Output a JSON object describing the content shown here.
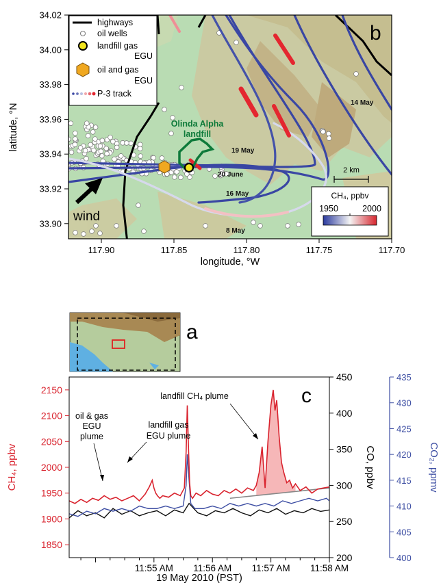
{
  "panel_b": {
    "letter": "b",
    "xlabel": "longitude, °W",
    "ylabel": "latitude, °N",
    "xticks": [
      "117.90",
      "117.85",
      "117.80",
      "117.75",
      "117.70"
    ],
    "yticks": [
      "34.02",
      "34.00",
      "33.98",
      "33.96",
      "33.94",
      "33.92",
      "33.90"
    ],
    "legend": {
      "highways": "highways",
      "oil_wells": "oil wells",
      "landfill_line1": "landfill gas",
      "landfill_line2": "EGU",
      "oilgas_line1": "oil and gas",
      "oilgas_line2": "EGU",
      "track": "P-3 track"
    },
    "landfill_name_line1": "Olinda Alpha",
    "landfill_name_line2": "landfill",
    "flight_labels": [
      "14 May",
      "19 May",
      "20 June",
      "16 May",
      "8 May"
    ],
    "wind_label": "wind",
    "scale_label": "2 km",
    "colorbar": {
      "title": "CH₄, ppbv",
      "min_label": "1950",
      "max_label": "2000"
    },
    "colors": {
      "land": "#b7dcb5",
      "track_low": "#3946a3",
      "track_high": "#e4262f",
      "landfill_outline": "#0e7a3a",
      "highway": "#000000"
    }
  },
  "panel_a": {
    "letter": "a",
    "colors": {
      "ocean": "#5fb0e2",
      "box": "#e02020"
    }
  },
  "chart_data": {
    "type": "line",
    "letter": "c",
    "xlabel": "19 May 2010 (PST)",
    "x_ticks": [
      "11:55 AM",
      "11:56 AM",
      "11:57 AM",
      "11:58 AM"
    ],
    "x_range_minutes": [
      -1.45,
      3.0
    ],
    "series": [
      {
        "name": "CH₄, ppbv",
        "axis": "left",
        "color": "#d9232e",
        "ylim": [
          1825,
          2175
        ],
        "ticks": [
          "1850",
          "1900",
          "1950",
          "2000",
          "2050",
          "2100",
          "2150"
        ],
        "x": [
          -1.45,
          -1.35,
          -1.25,
          -1.15,
          -1.05,
          -0.95,
          -0.85,
          -0.75,
          -0.65,
          -0.55,
          -0.45,
          -0.35,
          -0.25,
          -0.15,
          -0.08,
          -0.03,
          0.0,
          0.03,
          0.06,
          0.1,
          0.15,
          0.25,
          0.35,
          0.45,
          0.52,
          0.55,
          0.57,
          0.59,
          0.61,
          0.63,
          0.66,
          0.72,
          0.8,
          0.9,
          1.0,
          1.1,
          1.2,
          1.3,
          1.4,
          1.5,
          1.6,
          1.7,
          1.75,
          1.8,
          1.85,
          1.9,
          1.95,
          2.0,
          2.04,
          2.07,
          2.1,
          2.14,
          2.18,
          2.22,
          2.27,
          2.32,
          2.37,
          2.42,
          2.5,
          2.6,
          2.7,
          2.8,
          2.9,
          3.0
        ],
        "values": [
          1935,
          1930,
          1938,
          1932,
          1940,
          1936,
          1945,
          1938,
          1942,
          1935,
          1940,
          1945,
          1935,
          1948,
          1962,
          1975,
          1960,
          1950,
          1945,
          1940,
          1945,
          1942,
          1950,
          1945,
          1960,
          2030,
          2120,
          2040,
          1970,
          1945,
          1940,
          1950,
          1945,
          1955,
          1948,
          1945,
          1955,
          1950,
          1958,
          1950,
          1960,
          1955,
          1965,
          1990,
          2040,
          1960,
          2050,
          2120,
          2150,
          2110,
          2130,
          2060,
          2010,
          1990,
          1970,
          1975,
          1960,
          1968,
          1955,
          1962,
          1950,
          1958,
          1960,
          1962
        ]
      },
      {
        "name": "CO, ppbv",
        "axis": "right1",
        "color": "#111111",
        "ylim": [
          200,
          450
        ],
        "ticks": [
          "200",
          "250",
          "300",
          "350",
          "400",
          "450"
        ],
        "x": [
          -1.45,
          -1.3,
          -1.15,
          -1.0,
          -0.85,
          -0.7,
          -0.55,
          -0.4,
          -0.25,
          -0.1,
          0.05,
          0.2,
          0.35,
          0.5,
          0.6,
          0.75,
          0.9,
          1.05,
          1.2,
          1.35,
          1.5,
          1.65,
          1.8,
          1.95,
          2.1,
          2.25,
          2.4,
          2.55,
          2.7,
          2.85,
          3.0
        ],
        "values": [
          255,
          265,
          258,
          262,
          255,
          268,
          260,
          265,
          258,
          262,
          265,
          258,
          266,
          262,
          275,
          262,
          258,
          265,
          262,
          268,
          262,
          258,
          266,
          262,
          268,
          260,
          265,
          262,
          268,
          264,
          266
        ]
      },
      {
        "name": "CO₂, ppmv",
        "axis": "right2",
        "color": "#3d4ea3",
        "ylim": [
          400,
          435
        ],
        "ticks": [
          "400",
          "405",
          "410",
          "415",
          "420",
          "425",
          "430",
          "435"
        ],
        "x": [
          -1.45,
          -1.3,
          -1.15,
          -1.0,
          -0.85,
          -0.7,
          -0.55,
          -0.4,
          -0.25,
          -0.1,
          0.05,
          0.2,
          0.35,
          0.5,
          0.55,
          0.57,
          0.6,
          0.63,
          0.7,
          0.85,
          1.0,
          1.15,
          1.3,
          1.45,
          1.6,
          1.75,
          1.9,
          2.05,
          2.2,
          2.35,
          2.5,
          2.65,
          2.8,
          2.95,
          3.0
        ],
        "values": [
          408.5,
          408,
          409,
          408.5,
          409.5,
          409,
          409.5,
          409,
          410,
          409.5,
          409.5,
          410,
          409.5,
          410,
          414,
          420,
          415,
          410.5,
          409.5,
          409.5,
          410,
          409.5,
          410.5,
          410,
          410.5,
          410,
          410.5,
          410,
          411,
          410.5,
          411,
          411.5,
          411,
          411.5,
          411
        ]
      }
    ],
    "annotations": [
      "oil & gas\nEGU\nplume",
      "landfill gas\nEGU plume",
      "landfill CH₄ plume"
    ],
    "annotation_lines": {
      "oil": [
        "oil & gas",
        "EGU",
        "plume"
      ],
      "egu": [
        "landfill gas",
        "EGU plume"
      ],
      "landfill": "landfill CH₄ plume"
    }
  }
}
